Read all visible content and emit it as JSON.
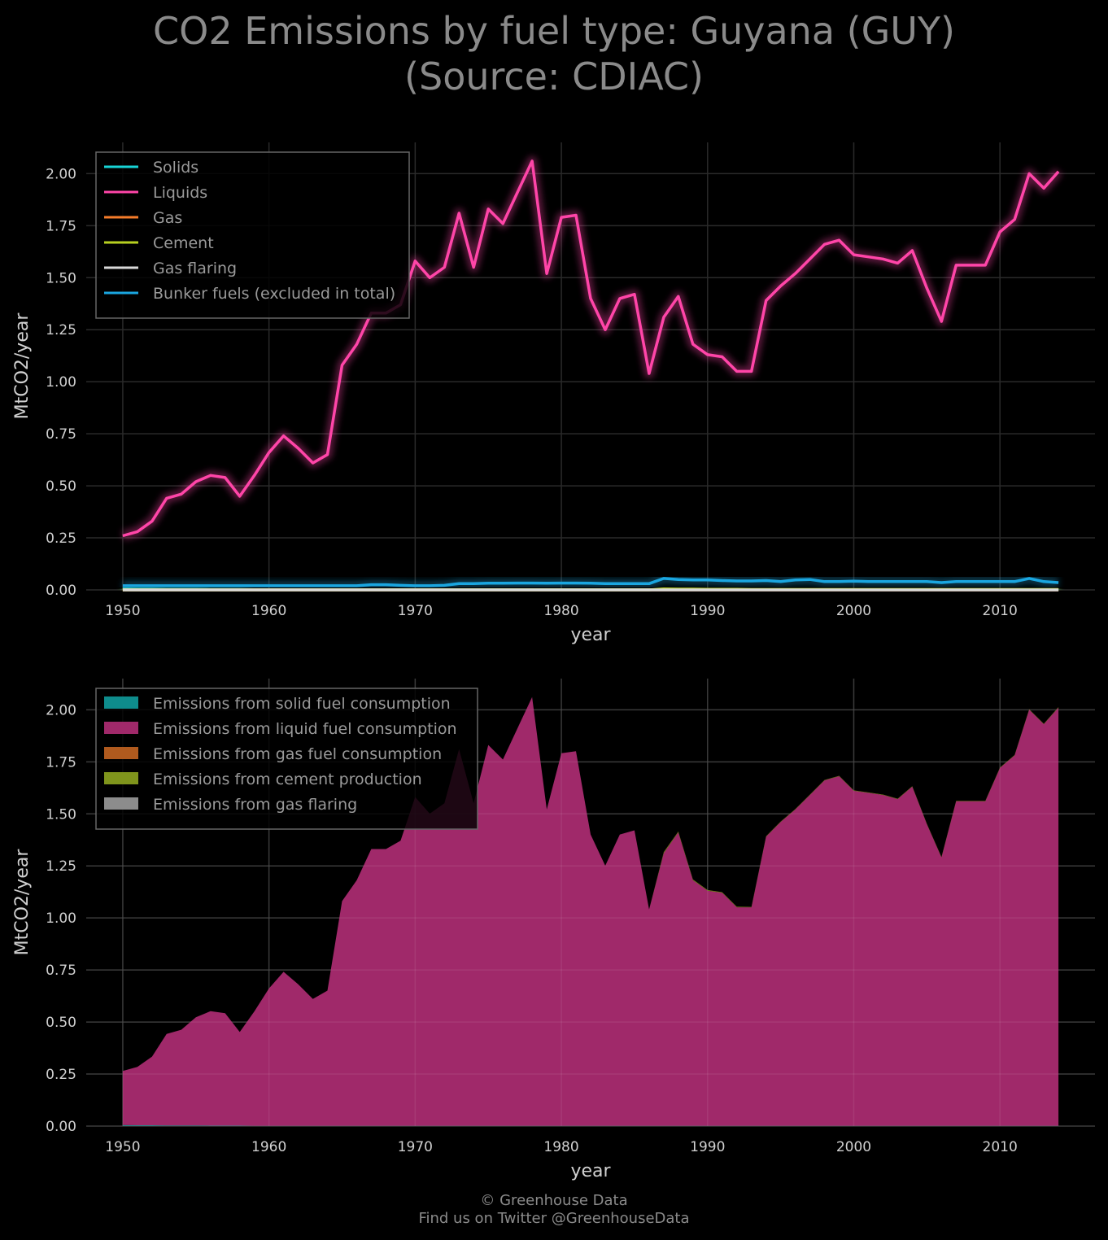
{
  "title": {
    "line1": "CO2 Emissions by fuel type: Guyana (GUY)",
    "line2": "(Source: CDIAC)"
  },
  "footer": {
    "line1": "© Greenhouse Data",
    "line2": "Find us on Twitter @GreenhouseData"
  },
  "chart_data": [
    {
      "type": "line",
      "xlabel": "year",
      "ylabel": "MtCO2/year",
      "xlim": [
        1947.5,
        2016.5
      ],
      "ylim": [
        0,
        2.15
      ],
      "xticks": [
        1950,
        1960,
        1970,
        1980,
        1990,
        2000,
        2010
      ],
      "yticks": [
        "0.00",
        "0.25",
        "0.50",
        "0.75",
        "1.00",
        "1.25",
        "1.50",
        "1.75",
        "2.00"
      ],
      "grid": true,
      "legend_position": "top-left",
      "x": [
        1950,
        1951,
        1952,
        1953,
        1954,
        1955,
        1956,
        1957,
        1958,
        1959,
        1960,
        1961,
        1962,
        1963,
        1964,
        1965,
        1966,
        1967,
        1968,
        1969,
        1970,
        1971,
        1972,
        1973,
        1974,
        1975,
        1976,
        1977,
        1978,
        1979,
        1980,
        1981,
        1982,
        1983,
        1984,
        1985,
        1986,
        1987,
        1988,
        1989,
        1990,
        1991,
        1992,
        1993,
        1994,
        1995,
        1996,
        1997,
        1998,
        1999,
        2000,
        2001,
        2002,
        2003,
        2004,
        2005,
        2006,
        2007,
        2008,
        2009,
        2010,
        2011,
        2012,
        2013,
        2014
      ],
      "series": [
        {
          "name": "Solids",
          "color": "#17d4d6",
          "values": [
            0.005,
            0.004,
            0.004,
            0.003,
            0.003,
            0.003,
            0.002,
            0.002,
            0.002,
            0.001,
            0.001,
            0.001,
            0.001,
            0.001,
            0.001,
            0.001,
            0.001,
            0.001,
            0.001,
            0.001,
            0.001,
            0.001,
            0.001,
            0.001,
            0.001,
            0.001,
            0.001,
            0.001,
            0.001,
            0.001,
            0.001,
            0.001,
            0.001,
            0.001,
            0.001,
            0.001,
            0.001,
            0.001,
            0.001,
            0.001,
            0.001,
            0.001,
            0.001,
            0.001,
            0.001,
            0.001,
            0.001,
            0.001,
            0.001,
            0.001,
            0.001,
            0.001,
            0.001,
            0.001,
            0.001,
            0.001,
            0.001,
            0.001,
            0.001,
            0.001,
            0.001,
            0.001,
            0.001,
            0.001,
            0.001
          ]
        },
        {
          "name": "Liquids",
          "color": "#ff45a8",
          "values": [
            0.26,
            0.28,
            0.33,
            0.44,
            0.46,
            0.52,
            0.55,
            0.54,
            0.45,
            0.55,
            0.66,
            0.74,
            0.68,
            0.61,
            0.65,
            1.08,
            1.18,
            1.33,
            1.33,
            1.37,
            1.58,
            1.5,
            1.55,
            1.81,
            1.55,
            1.83,
            1.76,
            1.91,
            2.06,
            1.52,
            1.79,
            1.8,
            1.4,
            1.25,
            1.4,
            1.42,
            1.04,
            1.31,
            1.41,
            1.18,
            1.13,
            1.12,
            1.05,
            1.05,
            1.39,
            1.46,
            1.52,
            1.59,
            1.66,
            1.68,
            1.61,
            1.6,
            1.59,
            1.57,
            1.63,
            1.45,
            1.29,
            1.56,
            1.56,
            1.56,
            1.72,
            1.78,
            2.0,
            1.93,
            2.01
          ]
        },
        {
          "name": "Gas",
          "color": "#f57c2a",
          "values": [
            0,
            0,
            0,
            0,
            0,
            0,
            0,
            0,
            0,
            0,
            0,
            0,
            0,
            0,
            0,
            0,
            0,
            0,
            0,
            0,
            0,
            0,
            0,
            0,
            0,
            0,
            0,
            0,
            0,
            0,
            0,
            0,
            0,
            0,
            0,
            0,
            0,
            0,
            0,
            0,
            0,
            0,
            0,
            0,
            0,
            0,
            0,
            0,
            0,
            0,
            0,
            0,
            0,
            0,
            0,
            0,
            0,
            0,
            0,
            0,
            0,
            0,
            0,
            0,
            0
          ]
        },
        {
          "name": "Cement",
          "color": "#b7d020",
          "values": [
            0,
            0,
            0,
            0,
            0,
            0,
            0,
            0,
            0,
            0,
            0,
            0,
            0,
            0,
            0,
            0,
            0,
            0,
            0,
            0,
            0,
            0,
            0,
            0,
            0,
            0,
            0,
            0,
            0,
            0,
            0,
            0,
            0,
            0,
            0,
            0,
            0,
            0.005,
            0.004,
            0.004,
            0.003,
            0.003,
            0.003,
            0.002,
            0.002,
            0.002,
            0.002,
            0.002,
            0.002,
            0.002,
            0.002,
            0.002,
            0.002,
            0.002,
            0.002,
            0.002,
            0.002,
            0.002,
            0.002,
            0.002,
            0.002,
            0.002,
            0.002,
            0.002,
            0.002
          ]
        },
        {
          "name": "Gas flaring",
          "color": "#d9d9d9",
          "values": [
            0,
            0,
            0,
            0,
            0,
            0,
            0,
            0,
            0,
            0,
            0,
            0,
            0,
            0,
            0,
            0,
            0,
            0,
            0,
            0,
            0,
            0,
            0,
            0,
            0,
            0,
            0,
            0,
            0,
            0,
            0,
            0,
            0,
            0,
            0,
            0,
            0,
            0,
            0,
            0,
            0,
            0,
            0,
            0,
            0,
            0,
            0,
            0,
            0,
            0,
            0,
            0,
            0,
            0,
            0,
            0,
            0,
            0,
            0,
            0,
            0,
            0,
            0,
            0,
            0
          ]
        },
        {
          "name": "Bunker fuels (excluded in total)",
          "color": "#1aa6e0",
          "values": [
            0.02,
            0.02,
            0.02,
            0.02,
            0.02,
            0.02,
            0.02,
            0.02,
            0.02,
            0.02,
            0.02,
            0.02,
            0.02,
            0.02,
            0.02,
            0.02,
            0.02,
            0.025,
            0.025,
            0.022,
            0.02,
            0.02,
            0.022,
            0.03,
            0.03,
            0.032,
            0.032,
            0.033,
            0.033,
            0.032,
            0.033,
            0.033,
            0.032,
            0.03,
            0.03,
            0.03,
            0.03,
            0.055,
            0.05,
            0.048,
            0.048,
            0.045,
            0.043,
            0.043,
            0.045,
            0.04,
            0.048,
            0.05,
            0.04,
            0.04,
            0.042,
            0.04,
            0.04,
            0.04,
            0.04,
            0.04,
            0.035,
            0.04,
            0.04,
            0.04,
            0.04,
            0.04,
            0.055,
            0.04,
            0.035
          ]
        }
      ]
    },
    {
      "type": "area",
      "xlabel": "year",
      "ylabel": "MtCO2/year",
      "xlim": [
        1947.5,
        2016.5
      ],
      "ylim": [
        0,
        2.15
      ],
      "xticks": [
        1950,
        1960,
        1970,
        1980,
        1990,
        2000,
        2010
      ],
      "yticks": [
        "0.00",
        "0.25",
        "0.50",
        "0.75",
        "1.00",
        "1.25",
        "1.50",
        "1.75",
        "2.00"
      ],
      "grid": true,
      "legend_position": "top-left",
      "stacked": true,
      "series": [
        {
          "name": "Emissions from solid fuel consumption",
          "color": "#0e8c8c"
        },
        {
          "name": "Emissions from liquid fuel consumption",
          "color": "#a0296a"
        },
        {
          "name": "Emissions from gas fuel consumption",
          "color": "#b05a1e"
        },
        {
          "name": "Emissions from cement production",
          "color": "#7f941c"
        },
        {
          "name": "Emissions from gas flaring",
          "color": "#8c8c8c"
        }
      ]
    }
  ]
}
